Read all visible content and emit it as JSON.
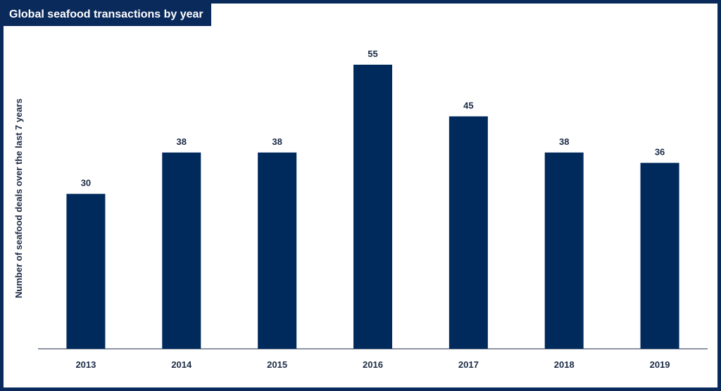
{
  "colors": {
    "frame": "#0a2a5c",
    "bar": "#002a5c",
    "text": "#1c2b45",
    "title_text": "#ffffff",
    "axis_line": "#1c2b45"
  },
  "chart_data": {
    "type": "bar",
    "title": "Global seafood transactions by year",
    "xlabel": "",
    "ylabel": "Number of seafood deals over the last 7 years",
    "categories": [
      "2013",
      "2014",
      "2015",
      "2016",
      "2017",
      "2018",
      "2019"
    ],
    "values": [
      30,
      38,
      38,
      55,
      45,
      38,
      36
    ],
    "ylim": [
      0,
      55
    ],
    "grid": false,
    "legend": "none",
    "data_labels": true
  }
}
